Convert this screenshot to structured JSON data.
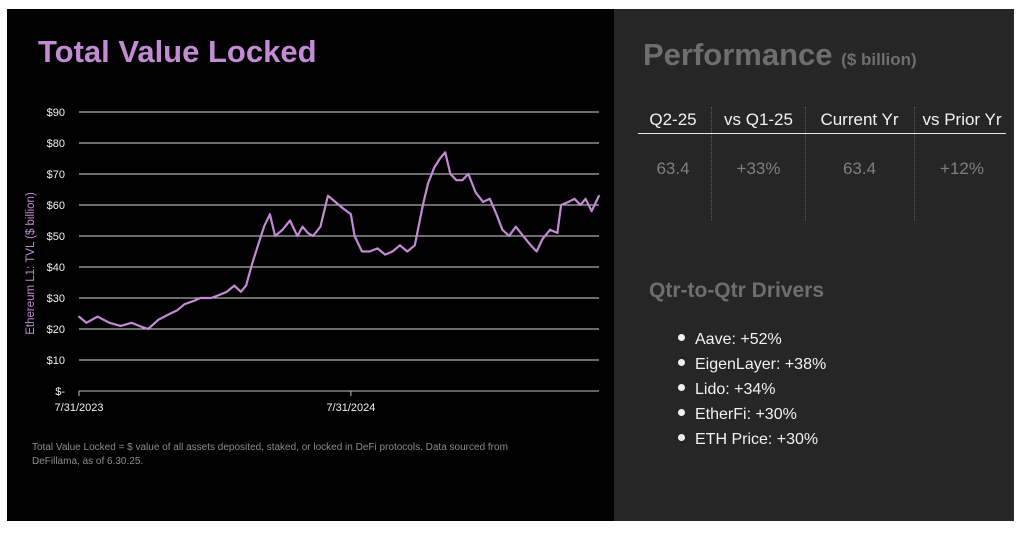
{
  "colors": {
    "accent": "#c38ad6",
    "left_bg": "#000000",
    "right_bg": "#262626",
    "muted": "#6e6e6e",
    "text": "#f2f2f2",
    "grid": "#d9d9d9"
  },
  "left": {
    "title": "Total Value Locked",
    "footnote": "Total Value Locked = $ value of all assets deposited, staked, or locked in DeFi protocols. Data sourced from DeFillama, as of 6.30.25."
  },
  "chart_data": {
    "type": "line",
    "title": "",
    "xlabel": "",
    "ylabel": "Ethereum L1: TVL ($ billion)",
    "ylim": [
      0,
      90
    ],
    "y_ticks": [
      0,
      10,
      20,
      30,
      40,
      50,
      60,
      70,
      80,
      90
    ],
    "y_tick_labels": [
      "$-",
      "$10",
      "$20",
      "$30",
      "$40",
      "$50",
      "$60",
      "$70",
      "$80",
      "$90"
    ],
    "x_tick_labels": [
      "7/31/2023",
      "7/31/2024"
    ],
    "xlim": [
      "2023-07-31",
      "2025-06-30"
    ],
    "grid": true,
    "legend": "none",
    "series": [
      {
        "color": "#c38ad6",
        "x": [
          "2023-07-31",
          "2023-08-10",
          "2023-08-25",
          "2023-09-10",
          "2023-09-25",
          "2023-10-10",
          "2023-10-20",
          "2023-11-01",
          "2023-11-15",
          "2023-12-01",
          "2023-12-10",
          "2023-12-20",
          "2024-01-01",
          "2024-01-10",
          "2024-01-25",
          "2024-02-05",
          "2024-02-15",
          "2024-02-25",
          "2024-03-05",
          "2024-03-12",
          "2024-03-20",
          "2024-03-28",
          "2024-04-05",
          "2024-04-13",
          "2024-04-20",
          "2024-04-30",
          "2024-05-10",
          "2024-05-20",
          "2024-05-27",
          "2024-06-03",
          "2024-06-10",
          "2024-06-20",
          "2024-06-30",
          "2024-07-10",
          "2024-07-20",
          "2024-07-31",
          "2024-08-05",
          "2024-08-15",
          "2024-08-25",
          "2024-09-05",
          "2024-09-15",
          "2024-09-25",
          "2024-10-05",
          "2024-10-15",
          "2024-10-25",
          "2024-11-05",
          "2024-11-12",
          "2024-11-20",
          "2024-11-28",
          "2024-12-05",
          "2024-12-12",
          "2024-12-20",
          "2024-12-28",
          "2025-01-05",
          "2025-01-15",
          "2025-01-25",
          "2025-02-03",
          "2025-02-12",
          "2025-02-20",
          "2025-03-01",
          "2025-03-10",
          "2025-03-20",
          "2025-03-30",
          "2025-04-07",
          "2025-04-15",
          "2025-04-25",
          "2025-05-05",
          "2025-05-10",
          "2025-05-20",
          "2025-05-28",
          "2025-06-05",
          "2025-06-12",
          "2025-06-20",
          "2025-06-30"
        ],
        "values": [
          24,
          22,
          24,
          22,
          21,
          22,
          21,
          20,
          23,
          25,
          26,
          28,
          29,
          30,
          30,
          31,
          32,
          34,
          32,
          34,
          41,
          47,
          53,
          57,
          50,
          52,
          55,
          50,
          53,
          51,
          50,
          53,
          63,
          61,
          59,
          57,
          50,
          45,
          45,
          46,
          44,
          45,
          47,
          45,
          47,
          60,
          67,
          72,
          75,
          77,
          70,
          68,
          68,
          70,
          64,
          61,
          62,
          57,
          52,
          50,
          53,
          50,
          47,
          45,
          49,
          52,
          51,
          60,
          61,
          62,
          60,
          62,
          58,
          63
        ]
      }
    ]
  },
  "performance": {
    "title": "Performance",
    "unit": "($ billion)",
    "columns": [
      {
        "header": "Q2-25",
        "value": "63.4"
      },
      {
        "header": "vs Q1-25",
        "value": "+33%"
      },
      {
        "header": "Current Yr",
        "value": "63.4"
      },
      {
        "header": "vs Prior Yr",
        "value": "+12%"
      }
    ]
  },
  "drivers": {
    "title": "Qtr-to-Qtr Drivers",
    "items": [
      "Aave: +52%",
      "EigenLayer: +38%",
      "Lido: +34%",
      "EtherFi: +30%",
      "ETH Price: +30%"
    ]
  }
}
